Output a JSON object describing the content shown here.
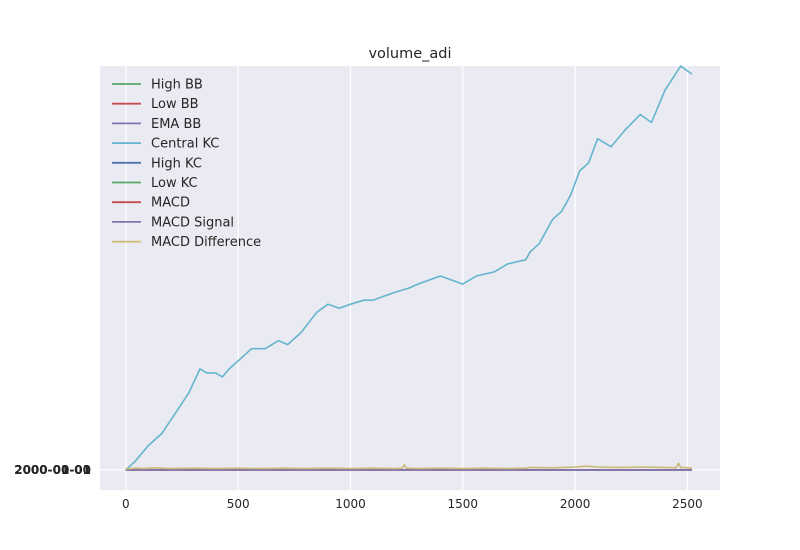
{
  "chart_data": {
    "type": "line",
    "title": "volume_adi",
    "xlabel": "",
    "ylabel": "",
    "xlim": [
      -115,
      2645
    ],
    "ylim": [
      -0.05,
      1.0
    ],
    "x_ticks": [
      0,
      500,
      1000,
      1500,
      2000,
      2500
    ],
    "y_tick_labels": [
      "2000-00-00",
      "2000-01-01"
    ],
    "grid": true,
    "legend": "upper-left",
    "series": [
      {
        "name": "High BB",
        "color": "#55a868",
        "x": [
          0,
          2520
        ],
        "y": [
          0,
          0
        ]
      },
      {
        "name": "Low BB",
        "color": "#c44e52",
        "x": [
          0,
          2520
        ],
        "y": [
          0,
          0
        ]
      },
      {
        "name": "EMA BB",
        "color": "#8172b2",
        "x": [
          0,
          2520
        ],
        "y": [
          0,
          0
        ]
      },
      {
        "name": "Central KC",
        "color": "#64b5cd",
        "x": [
          0,
          40,
          100,
          160,
          220,
          280,
          330,
          360,
          400,
          430,
          460,
          500,
          560,
          620,
          680,
          720,
          780,
          850,
          900,
          950,
          1000,
          1060,
          1100,
          1200,
          1260,
          1300,
          1400,
          1450,
          1500,
          1560,
          1640,
          1700,
          1780,
          1800,
          1840,
          1900,
          1940,
          1980,
          2020,
          2060,
          2100,
          2160,
          2220,
          2290,
          2340,
          2400,
          2470,
          2520
        ],
        "y": [
          0,
          0.02,
          0.06,
          0.09,
          0.14,
          0.19,
          0.25,
          0.24,
          0.24,
          0.23,
          0.25,
          0.27,
          0.3,
          0.3,
          0.32,
          0.31,
          0.34,
          0.39,
          0.41,
          0.4,
          0.41,
          0.42,
          0.42,
          0.44,
          0.45,
          0.46,
          0.48,
          0.47,
          0.46,
          0.48,
          0.49,
          0.51,
          0.52,
          0.54,
          0.56,
          0.62,
          0.64,
          0.68,
          0.74,
          0.76,
          0.82,
          0.8,
          0.84,
          0.88,
          0.86,
          0.94,
          1.0,
          0.98
        ]
      },
      {
        "name": "High KC",
        "color": "#4c72b0",
        "x": [
          0,
          2520
        ],
        "y": [
          0,
          0
        ]
      },
      {
        "name": "Low KC",
        "color": "#55a868",
        "x": [
          0,
          2520
        ],
        "y": [
          0,
          0
        ]
      },
      {
        "name": "MACD",
        "color": "#c44e52",
        "x": [
          0,
          2520
        ],
        "y": [
          0,
          0
        ]
      },
      {
        "name": "MACD Signal",
        "color": "#8172b2",
        "x": [
          0,
          2520
        ],
        "y": [
          0,
          0
        ]
      },
      {
        "name": "MACD Difference",
        "color": "#ccb974",
        "x": [
          0,
          40,
          80,
          120,
          200,
          300,
          400,
          500,
          600,
          700,
          800,
          900,
          1000,
          1100,
          1200,
          1230,
          1240,
          1250,
          1300,
          1400,
          1500,
          1600,
          1700,
          1780,
          1800,
          1900,
          2000,
          2050,
          2100,
          2200,
          2300,
          2400,
          2450,
          2460,
          2470,
          2480,
          2520
        ],
        "y": [
          0.002,
          0.004,
          0.003,
          0.005,
          0.003,
          0.004,
          0.003,
          0.004,
          0.003,
          0.004,
          0.003,
          0.004,
          0.003,
          0.004,
          0.003,
          0.004,
          0.012,
          0.004,
          0.003,
          0.004,
          0.003,
          0.004,
          0.003,
          0.004,
          0.006,
          0.005,
          0.007,
          0.009,
          0.007,
          0.006,
          0.007,
          0.006,
          0.005,
          0.016,
          0.005,
          0.006,
          0.004
        ]
      }
    ]
  }
}
